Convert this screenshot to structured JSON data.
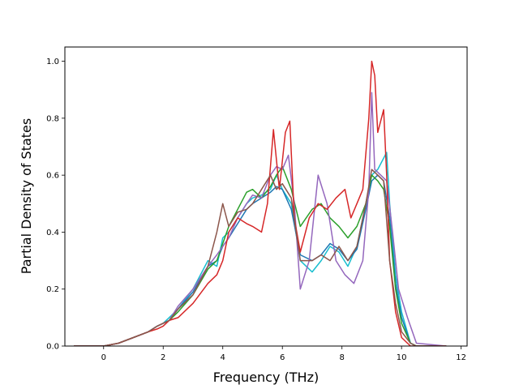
{
  "chart_data": {
    "type": "line",
    "title": "",
    "xlabel": "Frequency (THz)",
    "ylabel": "Partial Density of States",
    "xlim": [
      -1.3,
      12.2
    ],
    "ylim": [
      0.0,
      1.05
    ],
    "xticks": [
      "0",
      "2",
      "4",
      "6",
      "8",
      "10",
      "12"
    ],
    "yticks": [
      "0.0",
      "0.2",
      "0.4",
      "0.6",
      "0.8",
      "1.0"
    ],
    "grid": false,
    "legend": "none",
    "series_colors": [
      "#17becf",
      "#1f77b4",
      "#2ca02c",
      "#9467bd",
      "#d62728",
      "#8c564b"
    ],
    "series": [
      {
        "color": "#17becf",
        "x": [
          -1.0,
          0.0,
          0.5,
          1.0,
          1.5,
          1.8,
          2.0,
          2.2,
          2.5,
          3.0,
          3.5,
          3.8,
          4.0,
          4.2,
          4.5,
          4.8,
          5.0,
          5.3,
          5.6,
          5.8,
          6.0,
          6.3,
          6.6,
          7.0,
          7.3,
          7.6,
          7.9,
          8.2,
          8.5,
          8.8,
          9.0,
          9.2,
          9.4,
          9.5,
          9.6,
          9.8,
          10.0,
          10.3,
          10.5,
          11.5
        ],
        "y": [
          0.0,
          0.0,
          0.01,
          0.03,
          0.05,
          0.07,
          0.08,
          0.1,
          0.13,
          0.2,
          0.3,
          0.28,
          0.38,
          0.4,
          0.45,
          0.5,
          0.52,
          0.53,
          0.55,
          0.6,
          0.55,
          0.5,
          0.3,
          0.26,
          0.3,
          0.35,
          0.33,
          0.28,
          0.35,
          0.5,
          0.6,
          0.62,
          0.66,
          0.68,
          0.5,
          0.25,
          0.12,
          0.01,
          0.0,
          0.0
        ]
      },
      {
        "color": "#1f77b4",
        "x": [
          -1.0,
          0.0,
          0.5,
          1.0,
          1.5,
          1.8,
          2.0,
          2.2,
          2.5,
          3.0,
          3.5,
          3.8,
          4.0,
          4.2,
          4.5,
          4.8,
          5.0,
          5.3,
          5.6,
          5.8,
          6.0,
          6.3,
          6.6,
          7.0,
          7.3,
          7.6,
          7.9,
          8.2,
          8.5,
          8.8,
          9.0,
          9.2,
          9.4,
          9.6,
          9.8,
          10.0,
          10.3,
          10.5,
          11.5
        ],
        "y": [
          0.0,
          0.0,
          0.01,
          0.03,
          0.05,
          0.07,
          0.08,
          0.09,
          0.13,
          0.19,
          0.28,
          0.3,
          0.35,
          0.38,
          0.43,
          0.48,
          0.5,
          0.52,
          0.54,
          0.56,
          0.55,
          0.48,
          0.32,
          0.3,
          0.32,
          0.36,
          0.34,
          0.3,
          0.34,
          0.48,
          0.58,
          0.6,
          0.58,
          0.45,
          0.22,
          0.1,
          0.01,
          0.0,
          0.0
        ]
      },
      {
        "color": "#2ca02c",
        "x": [
          -1.0,
          0.0,
          0.5,
          1.0,
          1.5,
          1.8,
          2.0,
          2.2,
          2.5,
          3.0,
          3.5,
          3.8,
          4.0,
          4.2,
          4.5,
          4.8,
          5.0,
          5.3,
          5.6,
          5.8,
          6.0,
          6.3,
          6.6,
          7.0,
          7.3,
          7.6,
          7.9,
          8.2,
          8.5,
          8.8,
          9.0,
          9.2,
          9.4,
          9.6,
          9.8,
          10.0,
          10.3,
          10.5,
          11.5
        ],
        "y": [
          0.0,
          0.0,
          0.01,
          0.03,
          0.05,
          0.07,
          0.08,
          0.09,
          0.12,
          0.18,
          0.27,
          0.3,
          0.36,
          0.42,
          0.48,
          0.54,
          0.55,
          0.52,
          0.56,
          0.6,
          0.63,
          0.55,
          0.42,
          0.48,
          0.5,
          0.45,
          0.42,
          0.38,
          0.42,
          0.5,
          0.6,
          0.58,
          0.55,
          0.42,
          0.2,
          0.08,
          0.01,
          0.0,
          0.0
        ]
      },
      {
        "color": "#9467bd",
        "x": [
          -1.0,
          0.0,
          0.5,
          1.0,
          1.5,
          1.8,
          2.0,
          2.2,
          2.5,
          3.0,
          3.5,
          3.8,
          4.0,
          4.2,
          4.5,
          4.8,
          5.0,
          5.3,
          5.6,
          5.8,
          6.0,
          6.2,
          6.4,
          6.6,
          6.9,
          7.2,
          7.5,
          7.8,
          8.1,
          8.4,
          8.7,
          8.9,
          9.0,
          9.1,
          9.3,
          9.5,
          9.7,
          9.9,
          10.2,
          10.5,
          11.5
        ],
        "y": [
          0.0,
          0.0,
          0.01,
          0.03,
          0.05,
          0.07,
          0.08,
          0.09,
          0.14,
          0.2,
          0.28,
          0.32,
          0.35,
          0.38,
          0.45,
          0.5,
          0.53,
          0.52,
          0.6,
          0.63,
          0.62,
          0.67,
          0.5,
          0.2,
          0.3,
          0.6,
          0.5,
          0.3,
          0.25,
          0.22,
          0.3,
          0.55,
          0.89,
          0.62,
          0.6,
          0.58,
          0.4,
          0.2,
          0.1,
          0.01,
          0.0
        ]
      },
      {
        "color": "#d62728",
        "x": [
          -1.0,
          0.0,
          0.5,
          1.0,
          1.5,
          1.8,
          2.0,
          2.2,
          2.5,
          3.0,
          3.5,
          3.8,
          4.0,
          4.2,
          4.5,
          4.8,
          5.0,
          5.3,
          5.5,
          5.7,
          5.9,
          6.1,
          6.25,
          6.4,
          6.6,
          6.9,
          7.2,
          7.5,
          7.8,
          8.1,
          8.3,
          8.5,
          8.7,
          8.9,
          9.0,
          9.1,
          9.2,
          9.4,
          9.5,
          9.6,
          9.8,
          10.0,
          10.3,
          11.5
        ],
        "y": [
          0.0,
          0.0,
          0.01,
          0.03,
          0.05,
          0.06,
          0.07,
          0.09,
          0.1,
          0.15,
          0.22,
          0.25,
          0.3,
          0.4,
          0.45,
          0.43,
          0.42,
          0.4,
          0.5,
          0.76,
          0.55,
          0.75,
          0.79,
          0.45,
          0.33,
          0.45,
          0.5,
          0.48,
          0.52,
          0.55,
          0.45,
          0.5,
          0.55,
          0.8,
          1.0,
          0.95,
          0.75,
          0.83,
          0.6,
          0.3,
          0.12,
          0.03,
          0.0,
          0.0
        ]
      },
      {
        "color": "#8c564b",
        "x": [
          -1.0,
          0.0,
          0.5,
          1.0,
          1.5,
          1.8,
          2.0,
          2.2,
          2.5,
          3.0,
          3.5,
          3.8,
          4.0,
          4.2,
          4.5,
          4.8,
          5.0,
          5.3,
          5.6,
          5.8,
          6.0,
          6.3,
          6.6,
          7.0,
          7.3,
          7.6,
          7.9,
          8.2,
          8.5,
          8.8,
          9.0,
          9.2,
          9.4,
          9.6,
          9.8,
          10.0,
          10.3,
          10.5,
          11.5
        ],
        "y": [
          0.0,
          0.0,
          0.01,
          0.03,
          0.05,
          0.07,
          0.08,
          0.09,
          0.13,
          0.18,
          0.28,
          0.4,
          0.5,
          0.42,
          0.47,
          0.48,
          0.5,
          0.55,
          0.6,
          0.55,
          0.57,
          0.52,
          0.3,
          0.3,
          0.32,
          0.3,
          0.35,
          0.3,
          0.35,
          0.5,
          0.62,
          0.6,
          0.58,
          0.3,
          0.15,
          0.05,
          0.01,
          0.0,
          0.0
        ]
      }
    ]
  }
}
